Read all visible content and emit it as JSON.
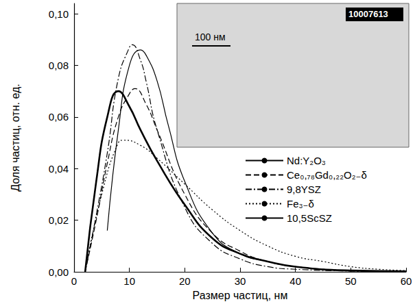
{
  "chart_data": {
    "type": "line",
    "x_label": "Размер частиц, нм",
    "y_label": "Доля частиц, отн. ед.",
    "xlim": [
      0,
      60
    ],
    "xticks": [
      0,
      10,
      20,
      30,
      40,
      50,
      60
    ],
    "ylim": [
      0,
      0.104
    ],
    "yticks": [
      {
        "value": 0,
        "label": "0,00"
      },
      {
        "value": 0.02,
        "label": "0,02"
      },
      {
        "value": 0.04,
        "label": "0,04"
      },
      {
        "value": 0.06,
        "label": "0,06"
      },
      {
        "value": 0.08,
        "label": "0,08"
      },
      {
        "value": 0.1,
        "label": "0,10"
      }
    ],
    "grid": false,
    "legend": "right",
    "annotations": [
      "100 нм",
      "10007613"
    ],
    "series": [
      {
        "name": "Nd:Y₂O₃",
        "color": "#000000",
        "line_style": "solid",
        "x": [
          6,
          8,
          10,
          12,
          13,
          15,
          17,
          20,
          25,
          30,
          35,
          40,
          50,
          60
        ],
        "values": [
          0.016,
          0.055,
          0.08,
          0.086,
          0.084,
          0.074,
          0.057,
          0.035,
          0.015,
          0.007,
          0.004,
          0.002,
          0.0005,
          0.0002
        ]
      },
      {
        "name": "Ce₀,₇₈Gd₀,₂₂O₂₋δ",
        "color": "#000000",
        "line_style": "dashed",
        "x": [
          2,
          4,
          6,
          8,
          10,
          11,
          13,
          15,
          20,
          25,
          30,
          35,
          40,
          50,
          60
        ],
        "values": [
          0,
          0.02,
          0.042,
          0.06,
          0.069,
          0.071,
          0.065,
          0.055,
          0.03,
          0.015,
          0.008,
          0.004,
          0.002,
          0.0005,
          0.0002
        ]
      },
      {
        "name": "9,8YSZ",
        "color": "#000000",
        "line_style": "dashdot",
        "x": [
          2,
          4,
          6,
          8,
          10,
          10.5,
          12,
          13,
          15,
          20,
          25,
          30,
          35,
          40,
          50,
          60
        ],
        "values": [
          0,
          0.022,
          0.046,
          0.075,
          0.087,
          0.088,
          0.082,
          0.074,
          0.055,
          0.025,
          0.011,
          0.005,
          0.002,
          0.001,
          0.0003,
          0.0001
        ]
      },
      {
        "name": "Fe₃₋δ",
        "color": "#000000",
        "line_style": "dotted",
        "x": [
          2,
          5,
          8,
          9,
          12,
          15,
          20,
          25,
          30,
          35,
          40,
          45,
          50,
          55,
          60
        ],
        "values": [
          0,
          0.03,
          0.05,
          0.051,
          0.049,
          0.044,
          0.034,
          0.024,
          0.016,
          0.01,
          0.006,
          0.004,
          0.002,
          0.001,
          0.0005
        ]
      },
      {
        "name": "10,5ScSZ",
        "color": "#000000",
        "line_style": "bold",
        "x": [
          2,
          4,
          6,
          8,
          10,
          12,
          15,
          20,
          25,
          30,
          35,
          40,
          50,
          60
        ],
        "values": [
          0,
          0.035,
          0.06,
          0.07,
          0.064,
          0.055,
          0.043,
          0.026,
          0.013,
          0.007,
          0.004,
          0.002,
          0.0005,
          0.0002
        ]
      }
    ]
  }
}
